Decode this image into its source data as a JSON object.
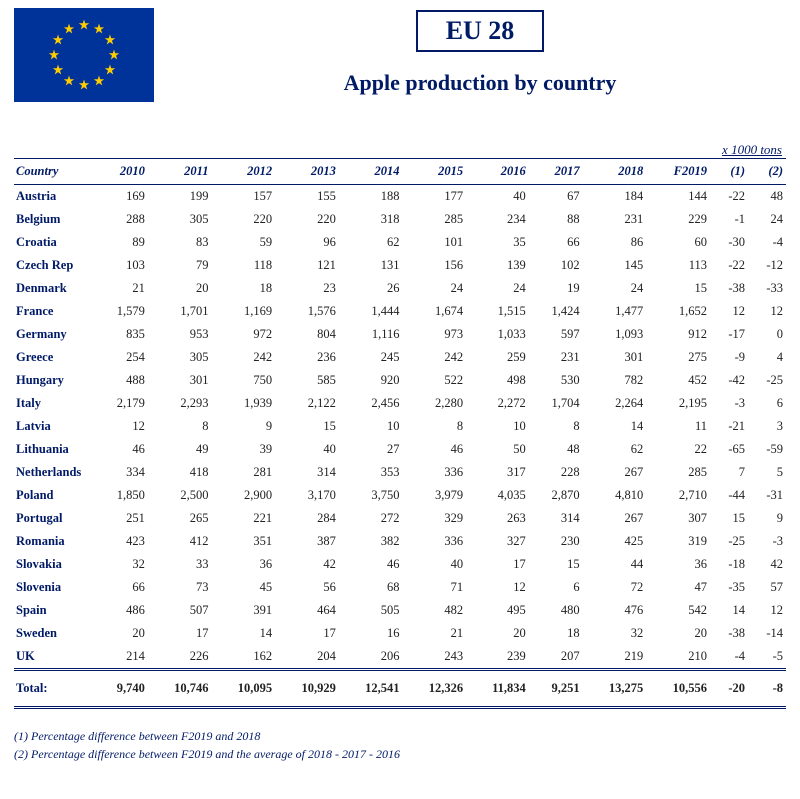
{
  "header": {
    "title_box": "EU 28",
    "subtitle": "Apple production by country",
    "unit_label": "x 1000 tons"
  },
  "flag": {
    "bg": "#003399",
    "star": "#ffcc00"
  },
  "colors": {
    "heading": "#001a66",
    "body_text": "#222222"
  },
  "table": {
    "columns": [
      "Country",
      "2010",
      "2011",
      "2012",
      "2013",
      "2014",
      "2015",
      "2016",
      "2017",
      "2018",
      "F2019",
      "(1)",
      "(2)"
    ],
    "rows": [
      [
        "Austria",
        "169",
        "199",
        "157",
        "155",
        "188",
        "177",
        "40",
        "67",
        "184",
        "144",
        "-22",
        "48"
      ],
      [
        "Belgium",
        "288",
        "305",
        "220",
        "220",
        "318",
        "285",
        "234",
        "88",
        "231",
        "229",
        "-1",
        "24"
      ],
      [
        "Croatia",
        "89",
        "83",
        "59",
        "96",
        "62",
        "101",
        "35",
        "66",
        "86",
        "60",
        "-30",
        "-4"
      ],
      [
        "Czech Rep",
        "103",
        "79",
        "118",
        "121",
        "131",
        "156",
        "139",
        "102",
        "145",
        "113",
        "-22",
        "-12"
      ],
      [
        "Denmark",
        "21",
        "20",
        "18",
        "23",
        "26",
        "24",
        "24",
        "19",
        "24",
        "15",
        "-38",
        "-33"
      ],
      [
        "France",
        "1,579",
        "1,701",
        "1,169",
        "1,576",
        "1,444",
        "1,674",
        "1,515",
        "1,424",
        "1,477",
        "1,652",
        "12",
        "12"
      ],
      [
        "Germany",
        "835",
        "953",
        "972",
        "804",
        "1,116",
        "973",
        "1,033",
        "597",
        "1,093",
        "912",
        "-17",
        "0"
      ],
      [
        "Greece",
        "254",
        "305",
        "242",
        "236",
        "245",
        "242",
        "259",
        "231",
        "301",
        "275",
        "-9",
        "4"
      ],
      [
        "Hungary",
        "488",
        "301",
        "750",
        "585",
        "920",
        "522",
        "498",
        "530",
        "782",
        "452",
        "-42",
        "-25"
      ],
      [
        "Italy",
        "2,179",
        "2,293",
        "1,939",
        "2,122",
        "2,456",
        "2,280",
        "2,272",
        "1,704",
        "2,264",
        "2,195",
        "-3",
        "6"
      ],
      [
        "Latvia",
        "12",
        "8",
        "9",
        "15",
        "10",
        "8",
        "10",
        "8",
        "14",
        "11",
        "-21",
        "3"
      ],
      [
        "Lithuania",
        "46",
        "49",
        "39",
        "40",
        "27",
        "46",
        "50",
        "48",
        "62",
        "22",
        "-65",
        "-59"
      ],
      [
        "Netherlands",
        "334",
        "418",
        "281",
        "314",
        "353",
        "336",
        "317",
        "228",
        "267",
        "285",
        "7",
        "5"
      ],
      [
        "Poland",
        "1,850",
        "2,500",
        "2,900",
        "3,170",
        "3,750",
        "3,979",
        "4,035",
        "2,870",
        "4,810",
        "2,710",
        "-44",
        "-31"
      ],
      [
        "Portugal",
        "251",
        "265",
        "221",
        "284",
        "272",
        "329",
        "263",
        "314",
        "267",
        "307",
        "15",
        "9"
      ],
      [
        "Romania",
        "423",
        "412",
        "351",
        "387",
        "382",
        "336",
        "327",
        "230",
        "425",
        "319",
        "-25",
        "-3"
      ],
      [
        "Slovakia",
        "32",
        "33",
        "36",
        "42",
        "46",
        "40",
        "17",
        "15",
        "44",
        "36",
        "-18",
        "42"
      ],
      [
        "Slovenia",
        "66",
        "73",
        "45",
        "56",
        "68",
        "71",
        "12",
        "6",
        "72",
        "47",
        "-35",
        "57"
      ],
      [
        "Spain",
        "486",
        "507",
        "391",
        "464",
        "505",
        "482",
        "495",
        "480",
        "476",
        "542",
        "14",
        "12"
      ],
      [
        "Sweden",
        "20",
        "17",
        "14",
        "17",
        "16",
        "21",
        "20",
        "18",
        "32",
        "20",
        "-38",
        "-14"
      ],
      [
        "UK",
        "214",
        "226",
        "162",
        "204",
        "206",
        "243",
        "239",
        "207",
        "219",
        "210",
        "-4",
        "-5"
      ]
    ],
    "total": [
      "Total:",
      "9,740",
      "10,746",
      "10,095",
      "10,929",
      "12,541",
      "12,326",
      "11,834",
      "9,251",
      "13,275",
      "10,556",
      "-20",
      "-8"
    ]
  },
  "footnotes": [
    "(1) Percentage difference between F2019 and 2018",
    "(2) Percentage difference between F2019 and the average of 2018 - 2017 - 2016"
  ]
}
